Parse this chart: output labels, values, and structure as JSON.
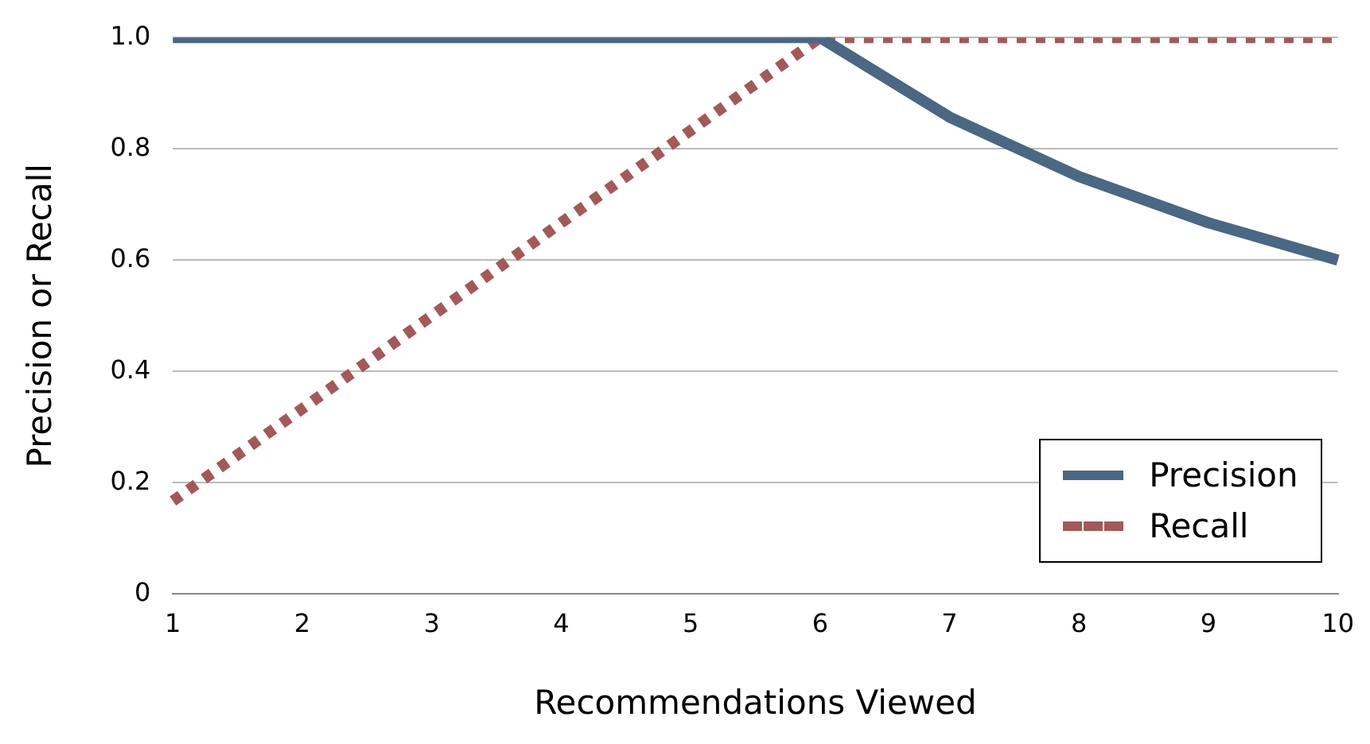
{
  "chart_data": {
    "type": "line",
    "xlabel": "Recommendations Viewed",
    "ylabel": "Precision or Recall",
    "categories": [
      "1",
      "2",
      "3",
      "4",
      "5",
      "6",
      "7",
      "8",
      "9",
      "10"
    ],
    "series": [
      {
        "name": "Precision",
        "color": "#4a6784",
        "line_style": "solid",
        "values": [
          1,
          1,
          1,
          1,
          1,
          1,
          0.857,
          0.75,
          0.667,
          0.6
        ]
      },
      {
        "name": "Recall",
        "color": "#a35959",
        "line_style": "dotted",
        "values": [
          0.167,
          0.333,
          0.5,
          0.667,
          0.833,
          1,
          1,
          1,
          1,
          1
        ]
      }
    ],
    "ylim": [
      0,
      1
    ],
    "yticks": [
      0,
      0.2,
      0.4,
      0.6,
      0.8,
      {
        "value": 1,
        "label": "1.0"
      }
    ],
    "grid": "y",
    "legend": "bottom right",
    "marker": "none"
  }
}
